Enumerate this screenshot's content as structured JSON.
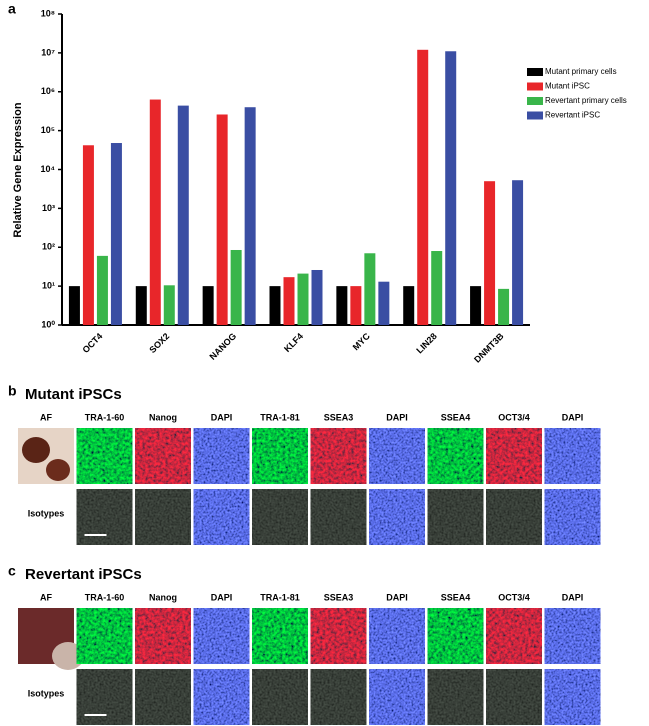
{
  "chart_data": {
    "type": "bar",
    "panel_label": "a",
    "ylabel": "Relative Gene Expression",
    "categories": [
      "OCT4",
      "SOX2",
      "NANOG",
      "KLF4",
      "MYC",
      "LIN28",
      "DNMT3B"
    ],
    "series": [
      {
        "name": "Mutant primary cells",
        "color": "#000000",
        "values": [
          10,
          10,
          10,
          10,
          10,
          10,
          10
        ]
      },
      {
        "name": "Mutant iPSC",
        "color": "#e8262a",
        "values": [
          42000,
          630000,
          260000,
          17,
          10,
          12000000,
          5000
        ]
      },
      {
        "name": "Revertant primary cells",
        "color": "#39b54a",
        "values": [
          60,
          10.5,
          85,
          21,
          70,
          80,
          8.5
        ]
      },
      {
        "name": "Revertant iPSC",
        "color": "#3a4ea3",
        "values": [
          48000,
          440000,
          400000,
          26,
          13,
          11000000,
          5300
        ]
      }
    ],
    "log_y": true,
    "ylim": [
      1,
      100000000
    ],
    "yticks": [
      {
        "value": 1,
        "label": "10⁰"
      },
      {
        "value": 10,
        "label": "10¹"
      },
      {
        "value": 100,
        "label": "10²"
      },
      {
        "value": 1000,
        "label": "10³"
      },
      {
        "value": 10000,
        "label": "10⁴"
      },
      {
        "value": 100000,
        "label": "10⁵"
      },
      {
        "value": 1000000,
        "label": "10⁶"
      },
      {
        "value": 10000000,
        "label": "10⁷"
      },
      {
        "value": 100000000,
        "label": "10⁸"
      }
    ],
    "legend": "upper right"
  },
  "panels": [
    {
      "label": "b",
      "title": "Mutant iPSCs",
      "columns": [
        "AF",
        "TRA-1-60",
        "Nanog",
        "DAPI",
        "TRA-1-81",
        "SSEA3",
        "DAPI",
        "SSEA4",
        "OCT3/4",
        "DAPI"
      ],
      "row_label": "Isotypes"
    },
    {
      "label": "c",
      "title": "Revertant iPSCs",
      "columns": [
        "AF",
        "TRA-1-60",
        "Nanog",
        "DAPI",
        "TRA-1-81",
        "SSEA3",
        "DAPI",
        "SSEA4",
        "OCT3/4",
        "DAPI"
      ],
      "row_label": "Isotypes"
    }
  ]
}
